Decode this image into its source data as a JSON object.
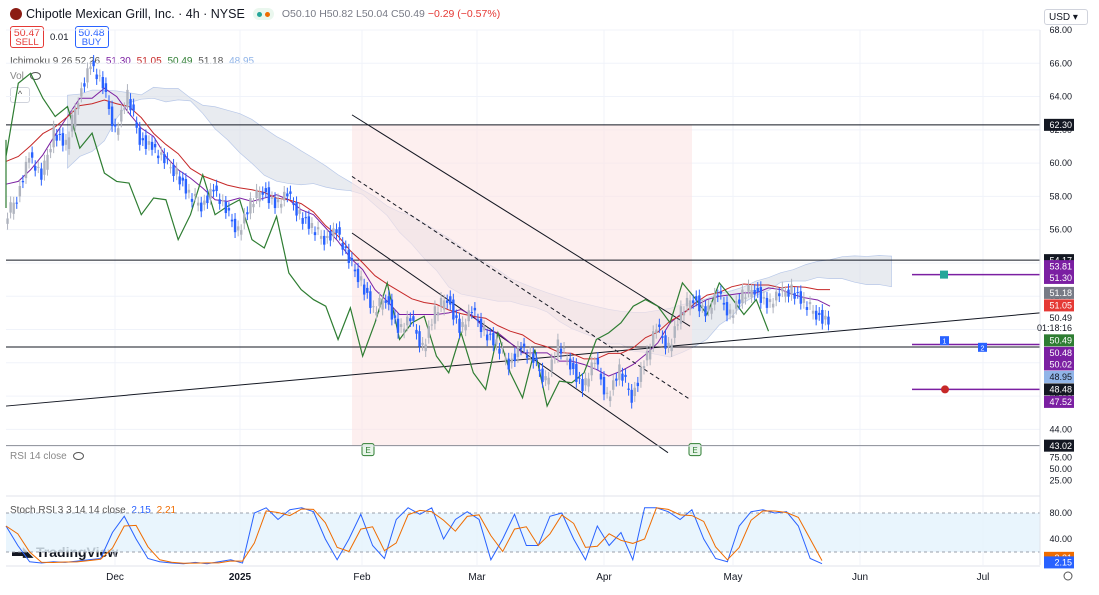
{
  "header": {
    "title": "Chipotle Mexican Grill, Inc. · 4h · NYSE",
    "ohlc": {
      "o": "O50.10",
      "h": "H50.82",
      "l": "L50.04",
      "c": "C50.49",
      "chg": "−0.29 (−0.57%)"
    }
  },
  "trade": {
    "sell_price": "50.47",
    "sell_label": "SELL",
    "spread": "0.01",
    "buy_price": "50.48",
    "buy_label": "BUY"
  },
  "indicators": {
    "ichimoku": {
      "label": "Ichimoku 9 26 52 26",
      "values": [
        "51.30",
        "51.05",
        "50.49",
        "51.18",
        "48.95"
      ],
      "colors": [
        "#7b1fa2",
        "#c62828",
        "#2e7d32",
        "#555555",
        "#90b4e8"
      ]
    },
    "vol_label": "Vol",
    "rsi_label": "RSI 14 close",
    "stoch_label": "Stoch RSI 3 3 14 14 close",
    "stoch_k": "2.15",
    "stoch_d": "2.21"
  },
  "currency": "USD",
  "brand": "TradingView",
  "colors": {
    "up": "#2962ff",
    "down": "#2962ff",
    "tenkan": "#7b1fa2",
    "kijun": "#c62828",
    "chikou": "#2e7d32",
    "cloud": "#d9dde6",
    "channel_fill": "#fce4e4"
  },
  "chart_data": [
    {
      "type": "candlestick",
      "title": "Chipotle Mexican Grill, Inc. · 4h · NYSE",
      "y_ticks": [
        "68.00",
        "66.00",
        "64.00",
        "62.00",
        "60.00",
        "58.00",
        "56.00",
        "54.00",
        "52.00",
        "50.00",
        "48.00",
        "46.00",
        "44.00"
      ],
      "ylim": [
        43.0,
        68.0
      ],
      "x_ticks": [
        "Dec",
        "2025",
        "Feb",
        "Mar",
        "Apr",
        "May",
        "Jun",
        "Jul"
      ],
      "price_path": [
        [
          0,
          56.5
        ],
        [
          3,
          58
        ],
        [
          5,
          60.5
        ],
        [
          7,
          59
        ],
        [
          9,
          62
        ],
        [
          11,
          61
        ],
        [
          13,
          64
        ],
        [
          14,
          66
        ],
        [
          15,
          64.5
        ],
        [
          16,
          62
        ],
        [
          17,
          64
        ],
        [
          18,
          61.5
        ],
        [
          19,
          61
        ],
        [
          20,
          60
        ],
        [
          21,
          59.5
        ],
        [
          22,
          58
        ],
        [
          23,
          57.5
        ],
        [
          24,
          58.5
        ],
        [
          25,
          57
        ],
        [
          26,
          56
        ],
        [
          27,
          57.5
        ],
        [
          28,
          58.5
        ],
        [
          29,
          57.5
        ],
        [
          30,
          58
        ],
        [
          31,
          57
        ],
        [
          32,
          56
        ],
        [
          33,
          55.5
        ],
        [
          34,
          56
        ],
        [
          35,
          54
        ],
        [
          36,
          53
        ],
        [
          37,
          51
        ],
        [
          38,
          52
        ],
        [
          39,
          50
        ],
        [
          40,
          50.5
        ],
        [
          41,
          49
        ],
        [
          42,
          51
        ],
        [
          43,
          52
        ],
        [
          44,
          50
        ],
        [
          45,
          51
        ],
        [
          46,
          50
        ],
        [
          47,
          49
        ],
        [
          48,
          48
        ],
        [
          49,
          49
        ],
        [
          50,
          48
        ],
        [
          51,
          47
        ],
        [
          52,
          49
        ],
        [
          53,
          48
        ],
        [
          54,
          46.5
        ],
        [
          55,
          48
        ],
        [
          56,
          46
        ],
        [
          57,
          47.5
        ],
        [
          58,
          46
        ],
        [
          59,
          48
        ],
        [
          60,
          50
        ],
        [
          61,
          49
        ],
        [
          62,
          51
        ],
        [
          63,
          52
        ],
        [
          64,
          51
        ],
        [
          65,
          52
        ],
        [
          66,
          51
        ],
        [
          67,
          52
        ],
        [
          68,
          52.5
        ],
        [
          69,
          51.5
        ],
        [
          70,
          52
        ],
        [
          71,
          52.5
        ],
        [
          72,
          51.5
        ],
        [
          73,
          51
        ],
        [
          74,
          50.5
        ]
      ],
      "horizontal_levels": [
        "62.30",
        "54.17",
        "48.95",
        "43.02"
      ],
      "axis_labels": [
        {
          "text": "62.30",
          "price": 62.3,
          "bg": "#131722",
          "fg": "#ffffff"
        },
        {
          "text": "54.17",
          "price": 54.17,
          "bg": "#131722",
          "fg": "#ffffff"
        },
        {
          "text": "53.81",
          "price": 53.81,
          "bg": "#7b1fa2",
          "fg": "#ffffff"
        },
        {
          "text": "51.30",
          "price": 53.1,
          "bg": "#7b1fa2",
          "fg": "#ffffff"
        },
        {
          "text": "51.18",
          "price": 52.2,
          "bg": "#787b86",
          "fg": "#ffffff"
        },
        {
          "text": "51.05",
          "price": 51.45,
          "bg": "#e53935",
          "fg": "#ffffff"
        },
        {
          "text": "50.49",
          "price": 50.7,
          "bg": "#ffffff",
          "fg": "#131722"
        },
        {
          "text": "01:18:16",
          "price": 50.1,
          "bg": "#ffffff",
          "fg": "#131722"
        },
        {
          "text": "50.49",
          "price": 49.35,
          "bg": "#2e7d32",
          "fg": "#ffffff"
        },
        {
          "text": "50.48",
          "price": 48.6,
          "bg": "#7b1fa2",
          "fg": "#ffffff"
        },
        {
          "text": "50.02",
          "price": 47.9,
          "bg": "#7b1fa2",
          "fg": "#ffffff"
        },
        {
          "text": "48.95",
          "price": 47.15,
          "bg": "#90b4e8",
          "fg": "#131722"
        },
        {
          "text": "48.48",
          "price": 46.4,
          "bg": "#131722",
          "fg": "#ffffff"
        },
        {
          "text": "47.52",
          "price": 45.65,
          "bg": "#7b1fa2",
          "fg": "#ffffff"
        },
        {
          "text": "43.02",
          "price": 43.02,
          "bg": "#131722",
          "fg": "#ffffff"
        }
      ],
      "earnings_markers": [
        "E",
        "E"
      ],
      "order_markers": [
        "1",
        "2"
      ]
    },
    {
      "type": "line",
      "title": "RSI 14 close",
      "y_ticks": [
        "75.00",
        "50.00",
        "25.00"
      ],
      "ylim": [
        0,
        100
      ]
    },
    {
      "type": "line",
      "title": "Stoch RSI 3 3 14 14 close",
      "y_ticks": [
        "80.00",
        "40.00"
      ],
      "ylim": [
        0,
        100
      ],
      "band": [
        20,
        80
      ],
      "last_values": [
        "2.21",
        "2.15"
      ],
      "k_path": [
        60,
        30,
        5,
        3,
        5,
        4,
        6,
        8,
        10,
        50,
        75,
        40,
        10,
        5,
        3,
        2,
        4,
        2,
        5,
        8,
        3,
        80,
        88,
        70,
        85,
        88,
        82,
        40,
        8,
        40,
        78,
        30,
        10,
        70,
        88,
        78,
        88,
        40,
        70,
        82,
        70,
        8,
        40,
        78,
        30,
        30,
        75,
        80,
        40,
        8,
        60,
        30,
        50,
        8,
        88,
        88,
        82,
        70,
        85,
        40,
        10,
        5,
        60,
        82,
        85,
        80,
        82,
        60,
        10,
        2
      ]
    }
  ]
}
